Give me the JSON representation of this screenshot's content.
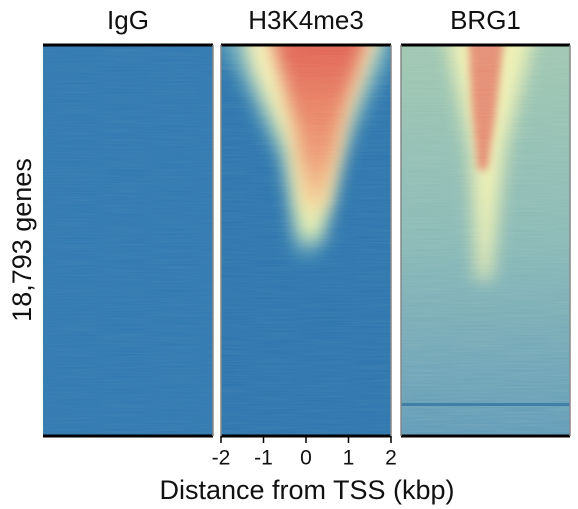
{
  "chart_data": {
    "type": "heatmap",
    "panels": [
      {
        "title": "IgG"
      },
      {
        "title": "H3K4me3"
      },
      {
        "title": "BRG1"
      }
    ],
    "ylabel": "18,793 genes",
    "xlabel": "Distance from TSS (kbp)",
    "xlim": [
      -2,
      2
    ],
    "xticks": [
      -2,
      -1,
      0,
      1,
      2
    ],
    "xaxis_panel": 1
  }
}
